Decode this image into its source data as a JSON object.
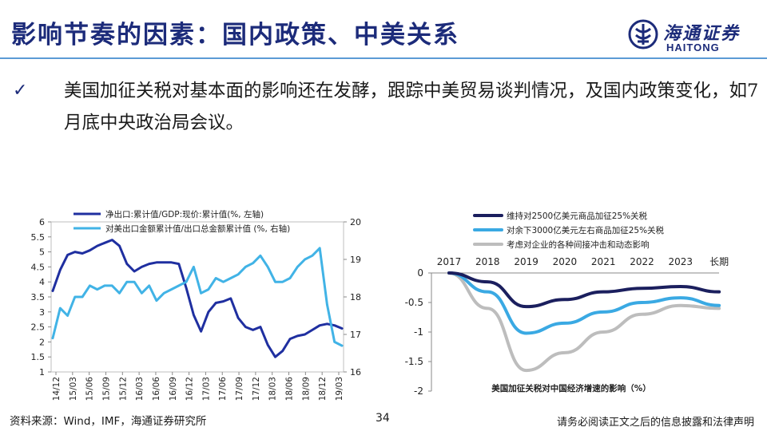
{
  "header": {
    "title": "影响节奏的因素：国内政策、中美关系",
    "logo_cn": "海通证券",
    "logo_en": "HAITONG"
  },
  "bullet": {
    "text": "美国加征关税对基本面的影响还在发酵，跟踪中美贸易谈判情况，及国内政策变化，如7月底中央政治局会议。"
  },
  "footer": {
    "source": "资料来源：Wind，IMF，海通证券研究所",
    "page": "34",
    "disclaimer": "请务必阅读正文之后的信息披露和法律声明"
  },
  "colors": {
    "brand": "#1c2b7a",
    "rule": "#5b9bd5",
    "dark_blue": "#1f2fa0",
    "light_blue": "#41b3e6",
    "gray": "#bdbdbd",
    "navy": "#1b1f5e"
  },
  "chart_data": [
    {
      "type": "line",
      "x_tick_labels": [
        "14/12",
        "15/03",
        "15/06",
        "15/09",
        "15/12",
        "16/03",
        "16/06",
        "16/09",
        "16/12",
        "17/03",
        "17/06",
        "17/09",
        "17/12",
        "18/03",
        "18/06",
        "18/09",
        "18/12",
        "19/03"
      ],
      "y_left_ticks": [
        "6",
        "5.5",
        "5",
        "4.5",
        "4",
        "3.5",
        "3",
        "2.5",
        "2",
        "1.5",
        "1"
      ],
      "y_right_ticks": [
        "20",
        "19",
        "18",
        "17",
        "16"
      ],
      "ylim_left": [
        1,
        6
      ],
      "ylim_right": [
        16,
        20
      ],
      "legend_placement": "top",
      "series": [
        {
          "name": "净出口:累计值/GDP:现价:累计值(%, 左轴)",
          "axis": "left",
          "color": "#1f2fa0",
          "values": [
            3.7,
            4.4,
            4.9,
            5.0,
            4.95,
            5.05,
            5.2,
            5.3,
            5.4,
            5.2,
            4.6,
            4.35,
            4.5,
            4.6,
            4.65,
            4.65,
            4.65,
            4.6,
            3.8,
            2.9,
            2.35,
            3.0,
            3.3,
            3.35,
            3.45,
            2.8,
            2.5,
            2.4,
            2.5,
            1.9,
            1.5,
            1.7,
            2.1,
            2.2,
            2.25,
            2.4,
            2.55,
            2.6,
            2.55,
            2.45
          ]
        },
        {
          "name": "对美出口金额累计值/出口总金额累计值 (%, 右轴)",
          "axis": "right",
          "color": "#41b3e6",
          "values": [
            16.9,
            17.7,
            17.5,
            18.0,
            18.0,
            18.3,
            18.2,
            18.3,
            18.3,
            18.1,
            18.4,
            18.4,
            18.1,
            18.3,
            17.9,
            18.1,
            18.2,
            18.3,
            18.4,
            18.8,
            18.1,
            18.2,
            18.5,
            18.4,
            18.5,
            18.6,
            18.8,
            18.9,
            19.1,
            18.8,
            18.4,
            18.4,
            18.5,
            18.8,
            19.0,
            19.1,
            19.3,
            17.8,
            16.8,
            16.7
          ]
        }
      ]
    },
    {
      "type": "line",
      "x_tick_labels": [
        "2017",
        "2018",
        "2019",
        "2020",
        "2021",
        "2022",
        "2023",
        "长期"
      ],
      "y_ticks": [
        "0",
        "-0.5",
        "-1",
        "-1.5",
        "-2"
      ],
      "ylim": [
        -2,
        0
      ],
      "legend_placement": "top",
      "caption": "美国加征关税对中国经济增速的影响（%）",
      "series": [
        {
          "name": "维持对2500亿美元商品加征25%关税",
          "color": "#1b1f5e",
          "values": [
            0,
            -0.15,
            -0.57,
            -0.45,
            -0.32,
            -0.26,
            -0.23,
            -0.32
          ]
        },
        {
          "name": "对余下3000亿美元左右商品加征25%关税",
          "color": "#3aa9e3",
          "values": [
            0,
            -0.32,
            -1.02,
            -0.85,
            -0.66,
            -0.5,
            -0.42,
            -0.55
          ]
        },
        {
          "name": "考虑对企业的各种间接冲击和动态影响",
          "color": "#bdbdbd",
          "values": [
            0,
            -0.6,
            -1.65,
            -1.35,
            -1.0,
            -0.7,
            -0.55,
            -0.6
          ]
        }
      ]
    }
  ]
}
